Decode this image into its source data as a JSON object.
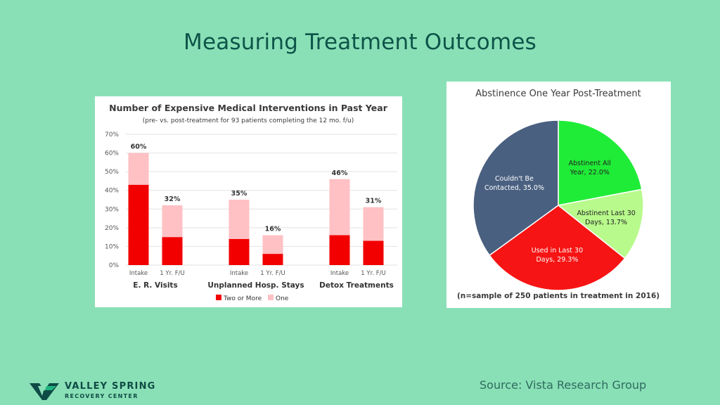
{
  "slide": {
    "title": "Measuring Treatment Outcomes",
    "source": "Source: Vista Research Group",
    "logo": {
      "name": "VALLEY SPRING",
      "subtitle": "RECOVERY CENTER",
      "icon": "valley-spring-logo-icon"
    }
  },
  "colors": {
    "background": "#8ae0b6",
    "title": "#0d5449",
    "bar_two_or_more": "#f20000",
    "bar_one": "#ffc1c4",
    "pie_abstinent_all_year": "#1fec37",
    "pie_abstinent_last_30": "#b8fa8c",
    "pie_used_last_30": "#f71414",
    "pie_could_not_be_contacted": "#4a6080"
  },
  "chart_data": [
    {
      "type": "bar",
      "stacked": true,
      "title": "Number of Expensive Medical Interventions in Past Year",
      "subtitle": "(pre- vs. post-treatment for 93 patients completing the 12 mo. f/u)",
      "categories": [
        "Intake",
        "1 Yr. F/U",
        "Intake",
        "1 Yr. F/U",
        "Intake",
        "1 Yr. F/U"
      ],
      "groups": [
        "E. R. Visits",
        "Unplanned Hosp. Stays",
        "Detox Treatments"
      ],
      "series": [
        {
          "name": "Two or More",
          "values": [
            43,
            15,
            14,
            6,
            16,
            13
          ]
        },
        {
          "name": "One",
          "values": [
            17,
            17,
            21,
            10,
            30,
            18
          ]
        }
      ],
      "totals": [
        60,
        32,
        35,
        16,
        46,
        31
      ],
      "data_labels": [
        "60%",
        "32%",
        "35%",
        "16%",
        "46%",
        "31%"
      ],
      "yticks": [
        "0%",
        "10%",
        "20%",
        "30%",
        "40%",
        "50%",
        "60%",
        "70%"
      ],
      "ylim": [
        0,
        70
      ],
      "legend": "bottom",
      "xlabel": "",
      "ylabel": ""
    },
    {
      "type": "pie",
      "title": "Abstinence One Year Post-Treatment",
      "slices": [
        {
          "label": "Abstinent All",
          "label2": "Year, 22.0%",
          "value": 22.0
        },
        {
          "label": "Abstinent Last 30",
          "label2": "Days, 13.7%",
          "value": 13.7
        },
        {
          "label": "Used in Last 30",
          "label2": "Days, 29.3%",
          "value": 29.3
        },
        {
          "label": "Couldn't Be",
          "label2": "Contacted, 35.0%",
          "value": 35.0
        }
      ],
      "footnote": "(n=sample of 250 patients in treatment in 2016)"
    }
  ]
}
